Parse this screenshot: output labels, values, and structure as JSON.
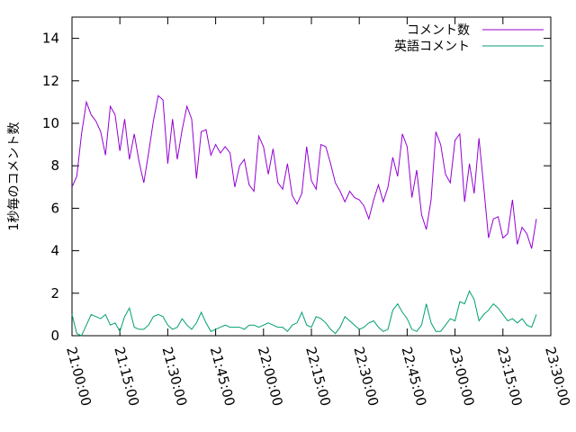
{
  "chart_data": {
    "type": "line",
    "title": "",
    "xlabel": "",
    "ylabel": "1秒毎のコメント数",
    "ylim": [
      0,
      15
    ],
    "xlim": [
      "21:00:00",
      "23:30:00"
    ],
    "yticks": [
      0,
      2,
      4,
      6,
      8,
      10,
      12,
      14
    ],
    "xticks": [
      "21:00:00",
      "21:15:00",
      "21:30:00",
      "21:45:00",
      "22:00:00",
      "22:15:00",
      "22:30:00",
      "22:45:00",
      "23:00:00",
      "23:15:00",
      "23:30:00"
    ],
    "legend_position": "top-right",
    "grid": false,
    "x": [
      "21:00:00",
      "21:01:30",
      "21:03:00",
      "21:04:30",
      "21:06:00",
      "21:07:30",
      "21:09:00",
      "21:10:30",
      "21:12:00",
      "21:13:30",
      "21:15:00",
      "21:16:30",
      "21:18:00",
      "21:19:30",
      "21:21:00",
      "21:22:30",
      "21:24:00",
      "21:25:30",
      "21:27:00",
      "21:28:30",
      "21:30:00",
      "21:31:30",
      "21:33:00",
      "21:34:30",
      "21:36:00",
      "21:37:30",
      "21:39:00",
      "21:40:30",
      "21:42:00",
      "21:43:30",
      "21:45:00",
      "21:46:30",
      "21:48:00",
      "21:49:30",
      "21:51:00",
      "21:52:30",
      "21:54:00",
      "21:55:30",
      "21:57:00",
      "21:58:30",
      "22:00:00",
      "22:01:30",
      "22:03:00",
      "22:04:30",
      "22:06:00",
      "22:07:30",
      "22:09:00",
      "22:10:30",
      "22:12:00",
      "22:13:30",
      "22:15:00",
      "22:16:30",
      "22:18:00",
      "22:19:30",
      "22:21:00",
      "22:22:30",
      "22:24:00",
      "22:25:30",
      "22:27:00",
      "22:28:30",
      "22:30:00",
      "22:31:30",
      "22:33:00",
      "22:34:30",
      "22:36:00",
      "22:37:30",
      "22:39:00",
      "22:40:30",
      "22:42:00",
      "22:43:30",
      "22:45:00",
      "22:46:30",
      "22:48:00",
      "22:49:30",
      "22:51:00",
      "22:52:30",
      "22:54:00",
      "22:55:30",
      "22:57:00",
      "22:58:30",
      "23:00:00",
      "23:01:30",
      "23:03:00",
      "23:04:30",
      "23:06:00",
      "23:07:30",
      "23:09:00",
      "23:10:30",
      "23:12:00",
      "23:13:30",
      "23:15:00",
      "23:16:30",
      "23:18:00",
      "23:19:30",
      "23:21:00",
      "23:22:30",
      "23:24:00",
      "23:25:30"
    ],
    "series": [
      {
        "name": "コメント数",
        "color": "#9400d3",
        "values": [
          7.0,
          7.5,
          9.5,
          11.0,
          10.4,
          10.1,
          9.6,
          8.5,
          10.8,
          10.4,
          8.7,
          10.2,
          8.3,
          9.5,
          8.2,
          7.2,
          8.6,
          10.1,
          11.3,
          11.1,
          8.1,
          10.2,
          8.3,
          9.7,
          10.8,
          10.2,
          7.4,
          9.6,
          9.7,
          8.5,
          9.0,
          8.6,
          8.9,
          8.6,
          7.0,
          8.0,
          8.3,
          7.1,
          6.8,
          9.4,
          8.9,
          7.6,
          8.8,
          7.2,
          6.9,
          8.1,
          6.6,
          6.2,
          6.7,
          8.9,
          7.3,
          6.9,
          9.0,
          8.9,
          8.1,
          7.2,
          6.8,
          6.3,
          6.8,
          6.5,
          6.4,
          6.1,
          5.5,
          6.4,
          7.1,
          6.3,
          7.0,
          8.4,
          7.5,
          9.5,
          8.9,
          6.5,
          7.8,
          5.7,
          5.0,
          6.4,
          9.6,
          9.0,
          7.6,
          7.2,
          9.2,
          9.5,
          6.3,
          8.1,
          6.7,
          9.3,
          7.0,
          4.6,
          5.5,
          5.6,
          4.6,
          4.8,
          6.4,
          4.3,
          5.1,
          4.8,
          4.1,
          5.5
        ]
      },
      {
        "name": "英語コメント",
        "color": "#009e73",
        "values": [
          1.0,
          0.1,
          0.0,
          0.5,
          1.0,
          0.9,
          0.8,
          1.0,
          0.5,
          0.6,
          0.2,
          0.9,
          1.3,
          0.4,
          0.3,
          0.3,
          0.5,
          0.9,
          1.0,
          0.9,
          0.5,
          0.3,
          0.4,
          0.8,
          0.5,
          0.3,
          0.6,
          1.1,
          0.6,
          0.2,
          0.3,
          0.4,
          0.5,
          0.4,
          0.4,
          0.4,
          0.3,
          0.5,
          0.5,
          0.4,
          0.5,
          0.6,
          0.5,
          0.4,
          0.4,
          0.2,
          0.5,
          0.6,
          1.1,
          0.5,
          0.4,
          0.9,
          0.8,
          0.6,
          0.3,
          0.1,
          0.4,
          0.9,
          0.7,
          0.5,
          0.3,
          0.4,
          0.6,
          0.7,
          0.4,
          0.2,
          0.3,
          1.2,
          1.5,
          1.1,
          0.8,
          0.3,
          0.2,
          0.5,
          1.5,
          0.6,
          0.2,
          0.2,
          0.5,
          0.8,
          0.7,
          1.6,
          1.5,
          2.1,
          1.7,
          0.7,
          1.0,
          1.2,
          1.5,
          1.3,
          1.0,
          0.7,
          0.8,
          0.6,
          0.8,
          0.5,
          0.4,
          1.0
        ]
      }
    ]
  }
}
